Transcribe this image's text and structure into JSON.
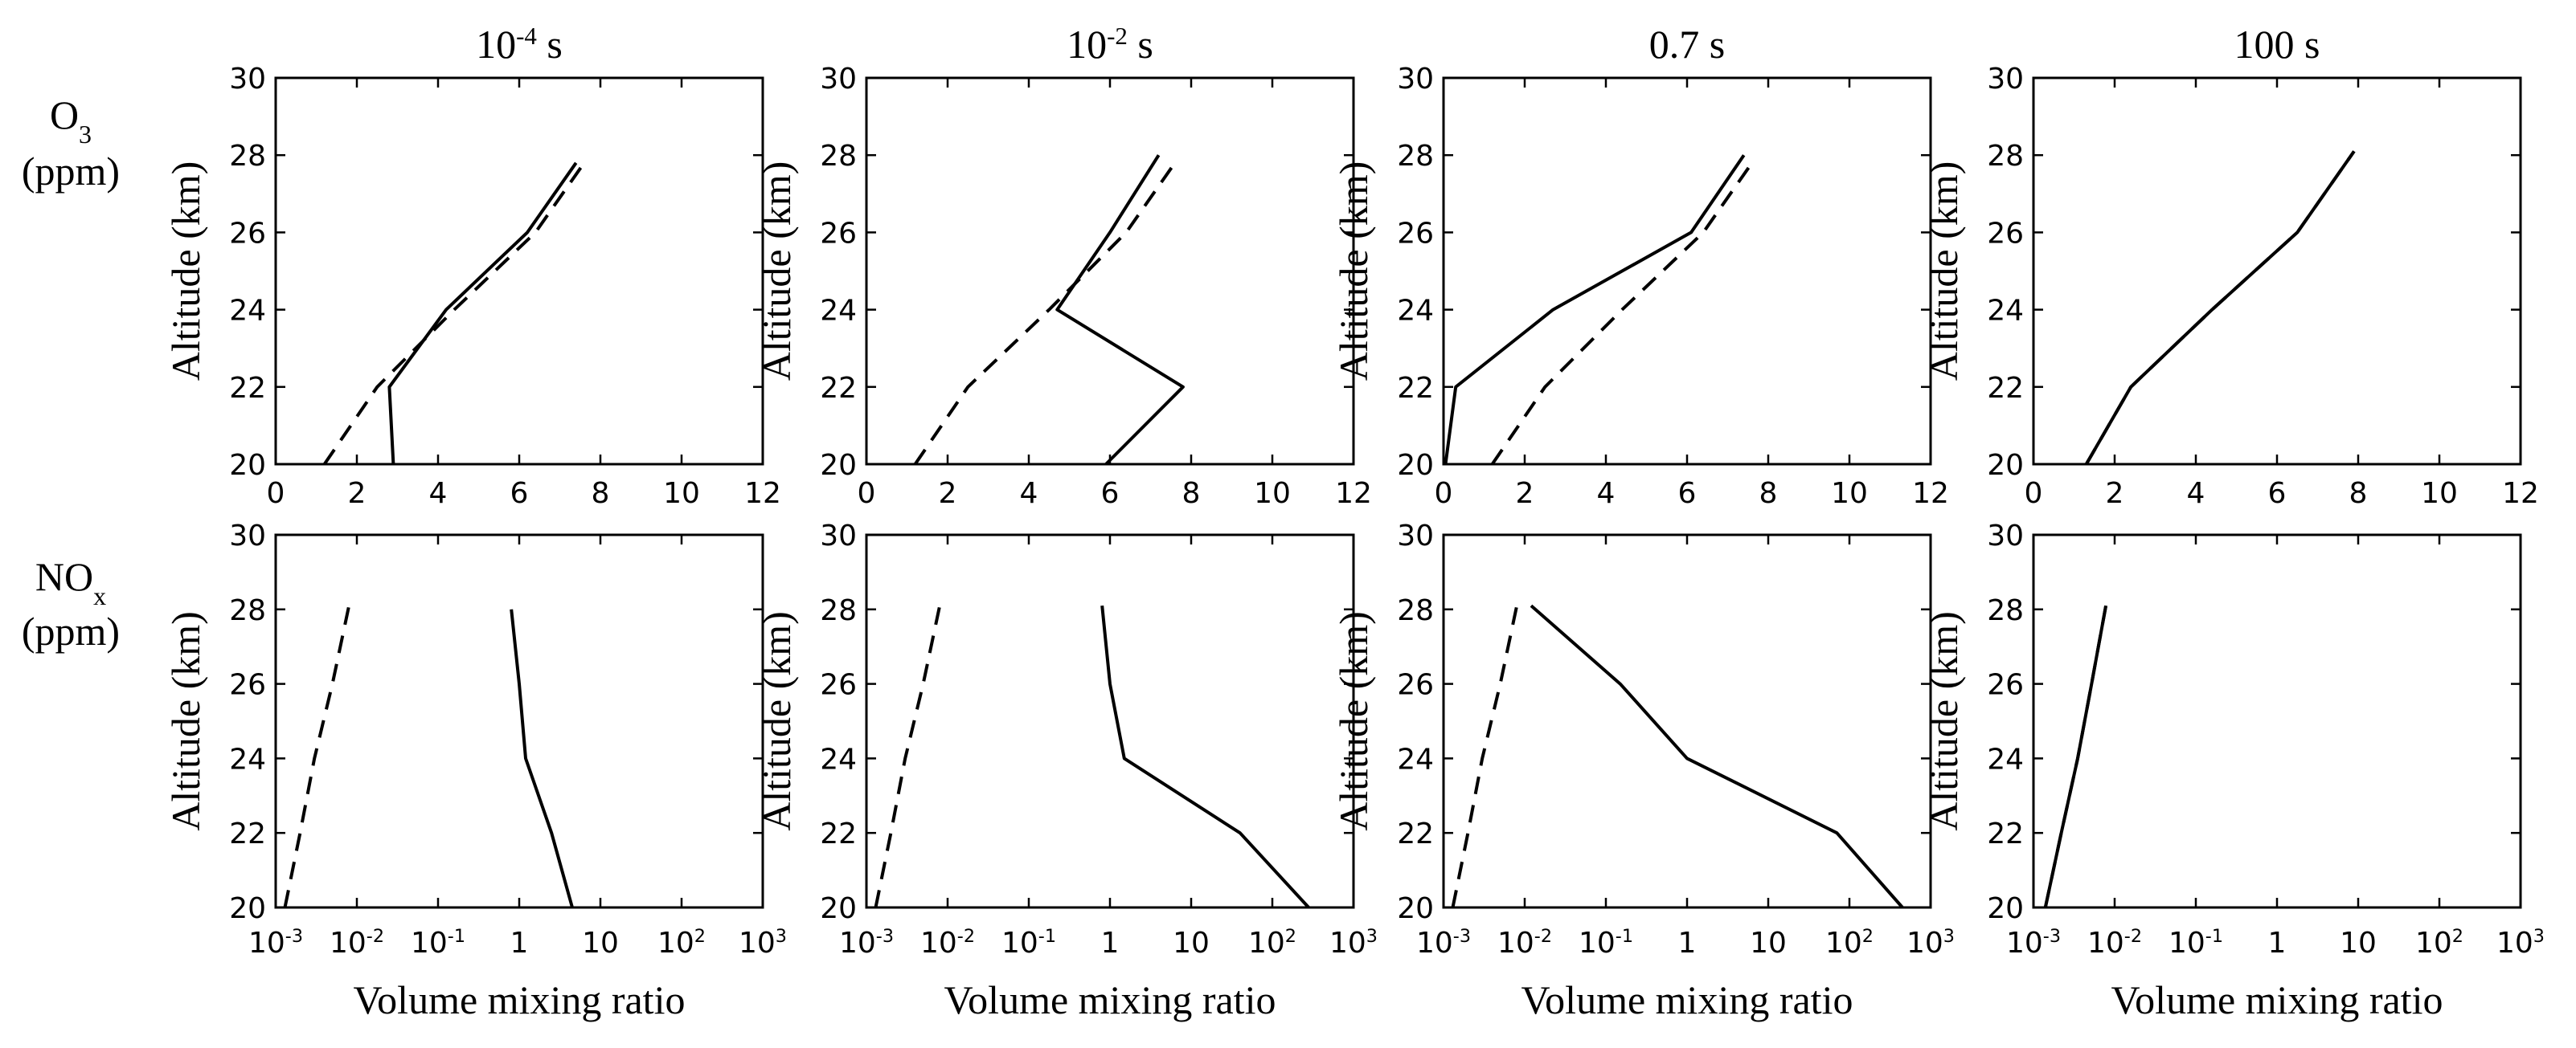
{
  "figure": {
    "columns": [
      {
        "base": "10",
        "exp": "-4",
        "unit": " s"
      },
      {
        "base": "10",
        "exp": "-2",
        "unit": " s"
      },
      {
        "base": "",
        "exp": "",
        "unit": "0.7 s"
      },
      {
        "base": "",
        "exp": "",
        "unit": "100 s"
      }
    ],
    "rows": [
      {
        "species": "O",
        "sub": "3",
        "unit": "(ppm)",
        "ylabel": "Altitude (km)"
      },
      {
        "species": "NO",
        "sub": "x",
        "unit": "(ppm)",
        "ylabel": "Altitude (km)"
      }
    ]
  },
  "chart_data": [
    {
      "type": "line",
      "row": 0,
      "col": 0,
      "xscale": "linear",
      "xlim": [
        0,
        12
      ],
      "ylim": [
        20,
        30
      ],
      "xticks": [
        "0",
        "2",
        "4",
        "6",
        "8",
        "10",
        "12"
      ],
      "yticks": [
        "20",
        "22",
        "24",
        "26",
        "28",
        "30"
      ],
      "series": [
        {
          "name": "solid",
          "dash": false,
          "points": [
            [
              2.9,
              20
            ],
            [
              2.8,
              22
            ],
            [
              4.2,
              24
            ],
            [
              6.2,
              26
            ],
            [
              7.4,
              27.8
            ]
          ]
        },
        {
          "name": "dashed",
          "dash": true,
          "points": [
            [
              1.2,
              20
            ],
            [
              2.5,
              22
            ],
            [
              4.4,
              24
            ],
            [
              6.4,
              26
            ],
            [
              7.6,
              27.8
            ]
          ]
        }
      ]
    },
    {
      "type": "line",
      "row": 0,
      "col": 1,
      "xscale": "linear",
      "xlim": [
        0,
        12
      ],
      "ylim": [
        20,
        30
      ],
      "xticks": [
        "0",
        "2",
        "4",
        "6",
        "8",
        "10",
        "12"
      ],
      "yticks": [
        "20",
        "22",
        "24",
        "26",
        "28",
        "30"
      ],
      "series": [
        {
          "name": "solid",
          "dash": false,
          "points": [
            [
              5.9,
              20
            ],
            [
              7.8,
              22
            ],
            [
              4.7,
              24
            ],
            [
              6.0,
              26
            ],
            [
              7.2,
              28
            ]
          ]
        },
        {
          "name": "dashed",
          "dash": true,
          "points": [
            [
              1.2,
              20
            ],
            [
              2.5,
              22
            ],
            [
              4.5,
              24
            ],
            [
              6.4,
              26
            ],
            [
              7.6,
              27.8
            ]
          ]
        }
      ]
    },
    {
      "type": "line",
      "row": 0,
      "col": 2,
      "xscale": "linear",
      "xlim": [
        0,
        12
      ],
      "ylim": [
        20,
        30
      ],
      "xticks": [
        "0",
        "2",
        "4",
        "6",
        "8",
        "10",
        "12"
      ],
      "yticks": [
        "20",
        "22",
        "24",
        "26",
        "28",
        "30"
      ],
      "series": [
        {
          "name": "solid",
          "dash": false,
          "points": [
            [
              0.05,
              20
            ],
            [
              0.3,
              22
            ],
            [
              2.7,
              24
            ],
            [
              6.1,
              26
            ],
            [
              7.4,
              28
            ]
          ]
        },
        {
          "name": "dashed",
          "dash": true,
          "points": [
            [
              1.2,
              20
            ],
            [
              2.5,
              22
            ],
            [
              4.4,
              24
            ],
            [
              6.4,
              26
            ],
            [
              7.6,
              27.8
            ]
          ]
        }
      ]
    },
    {
      "type": "line",
      "row": 0,
      "col": 3,
      "xscale": "linear",
      "xlim": [
        0,
        12
      ],
      "ylim": [
        20,
        30
      ],
      "xticks": [
        "0",
        "2",
        "4",
        "6",
        "8",
        "10",
        "12"
      ],
      "yticks": [
        "20",
        "22",
        "24",
        "26",
        "28",
        "30"
      ],
      "series": [
        {
          "name": "solid",
          "dash": false,
          "points": [
            [
              1.3,
              20
            ],
            [
              2.4,
              22
            ],
            [
              4.4,
              24
            ],
            [
              6.5,
              26
            ],
            [
              7.9,
              28.1
            ]
          ]
        },
        {
          "name": "dashed",
          "dash": true,
          "points": [
            [
              1.3,
              20
            ],
            [
              2.4,
              22
            ],
            [
              4.4,
              24
            ],
            [
              6.5,
              26
            ],
            [
              7.9,
              28.1
            ]
          ]
        }
      ]
    },
    {
      "type": "line",
      "row": 1,
      "col": 0,
      "xscale": "log",
      "xlim": [
        0.001,
        1000
      ],
      "ylim": [
        20,
        30
      ],
      "xticks": [
        {
          "b": "10",
          "e": "-3"
        },
        {
          "b": "10",
          "e": "-2"
        },
        {
          "b": "10",
          "e": "-1"
        },
        {
          "b": "1",
          "e": ""
        },
        {
          "b": "10",
          "e": ""
        },
        {
          "b": "10",
          "e": "2"
        },
        {
          "b": "10",
          "e": "3"
        }
      ],
      "yticks": [
        "20",
        "22",
        "24",
        "26",
        "28",
        "30"
      ],
      "series": [
        {
          "name": "solid",
          "dash": false,
          "points": [
            [
              4.5,
              20
            ],
            [
              2.5,
              22
            ],
            [
              1.2,
              24
            ],
            [
              1.0,
              26
            ],
            [
              0.8,
              28
            ]
          ]
        },
        {
          "name": "dashed",
          "dash": true,
          "points": [
            [
              0.0013,
              20
            ],
            [
              0.002,
              22
            ],
            [
              0.003,
              24
            ],
            [
              0.005,
              26
            ],
            [
              0.008,
              28.1
            ]
          ]
        }
      ]
    },
    {
      "type": "line",
      "row": 1,
      "col": 1,
      "xscale": "log",
      "xlim": [
        0.001,
        1000
      ],
      "ylim": [
        20,
        30
      ],
      "xticks": [
        {
          "b": "10",
          "e": "-3"
        },
        {
          "b": "10",
          "e": "-2"
        },
        {
          "b": "10",
          "e": "-1"
        },
        {
          "b": "1",
          "e": ""
        },
        {
          "b": "10",
          "e": ""
        },
        {
          "b": "10",
          "e": "2"
        },
        {
          "b": "10",
          "e": "3"
        }
      ],
      "yticks": [
        "20",
        "22",
        "24",
        "26",
        "28",
        "30"
      ],
      "series": [
        {
          "name": "solid",
          "dash": false,
          "points": [
            [
              280,
              20
            ],
            [
              40,
              22
            ],
            [
              1.5,
              24
            ],
            [
              1.0,
              26
            ],
            [
              0.8,
              28.1
            ]
          ]
        },
        {
          "name": "dashed",
          "dash": true,
          "points": [
            [
              0.0013,
              20
            ],
            [
              0.002,
              22
            ],
            [
              0.003,
              24
            ],
            [
              0.005,
              26
            ],
            [
              0.008,
              28.1
            ]
          ]
        }
      ]
    },
    {
      "type": "line",
      "row": 1,
      "col": 2,
      "xscale": "log",
      "xlim": [
        0.001,
        1000
      ],
      "ylim": [
        20,
        30
      ],
      "xticks": [
        {
          "b": "10",
          "e": "-3"
        },
        {
          "b": "10",
          "e": "-2"
        },
        {
          "b": "10",
          "e": "-1"
        },
        {
          "b": "1",
          "e": ""
        },
        {
          "b": "10",
          "e": ""
        },
        {
          "b": "10",
          "e": "2"
        },
        {
          "b": "10",
          "e": "3"
        }
      ],
      "yticks": [
        "20",
        "22",
        "24",
        "26",
        "28",
        "30"
      ],
      "series": [
        {
          "name": "solid",
          "dash": false,
          "points": [
            [
              450,
              20
            ],
            [
              70,
              22
            ],
            [
              1.0,
              24
            ],
            [
              0.15,
              26
            ],
            [
              0.012,
              28.1
            ]
          ]
        },
        {
          "name": "dashed",
          "dash": true,
          "points": [
            [
              0.0013,
              20
            ],
            [
              0.002,
              22
            ],
            [
              0.003,
              24
            ],
            [
              0.005,
              26
            ],
            [
              0.008,
              28.1
            ]
          ]
        }
      ]
    },
    {
      "type": "line",
      "row": 1,
      "col": 3,
      "xscale": "log",
      "xlim": [
        0.001,
        1000
      ],
      "ylim": [
        20,
        30
      ],
      "xticks": [
        {
          "b": "10",
          "e": "-3"
        },
        {
          "b": "10",
          "e": "-2"
        },
        {
          "b": "10",
          "e": "-1"
        },
        {
          "b": "1",
          "e": ""
        },
        {
          "b": "10",
          "e": ""
        },
        {
          "b": "10",
          "e": "2"
        },
        {
          "b": "10",
          "e": "3"
        }
      ],
      "yticks": [
        "20",
        "22",
        "24",
        "26",
        "28",
        "30"
      ],
      "xlabel": "Volume mixing ratio",
      "series": [
        {
          "name": "solid",
          "dash": false,
          "points": [
            [
              0.0014,
              20
            ],
            [
              0.0022,
              22
            ],
            [
              0.0035,
              24
            ],
            [
              0.0052,
              26
            ],
            [
              0.0078,
              28.1
            ]
          ]
        },
        {
          "name": "dashed",
          "dash": true,
          "points": [
            [
              0.0014,
              20
            ],
            [
              0.0022,
              22
            ],
            [
              0.0035,
              24
            ],
            [
              0.0052,
              26
            ],
            [
              0.0078,
              28.1
            ]
          ]
        }
      ]
    }
  ],
  "xlabel": "Volume mixing ratio"
}
